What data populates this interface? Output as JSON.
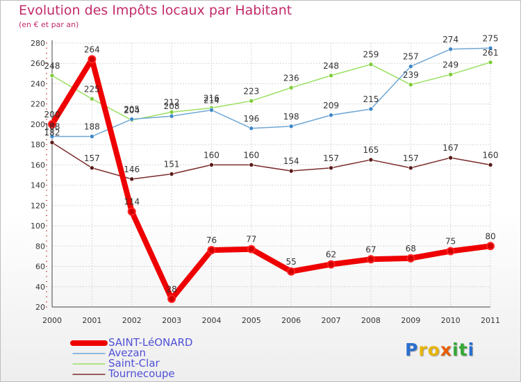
{
  "chart_data": {
    "type": "line",
    "title": "Evolution des Impôts locaux par Habitant",
    "subtitle": "(en € et par an)",
    "categories": [
      "2000",
      "2001",
      "2002",
      "2003",
      "2004",
      "2005",
      "2006",
      "2007",
      "2008",
      "2009",
      "2010",
      "2011"
    ],
    "ylim": [
      20,
      280
    ],
    "yticks": [
      20,
      40,
      60,
      80,
      100,
      120,
      140,
      160,
      180,
      200,
      220,
      240,
      260,
      280
    ],
    "grid": true,
    "series": [
      {
        "name": "SAINT-LéONARD",
        "color": "#ee0000",
        "values": [
          200,
          264,
          114,
          28,
          76,
          77,
          55,
          62,
          67,
          68,
          75,
          80
        ]
      },
      {
        "name": "Avezan",
        "color": "#6fa6d4",
        "values": [
          188,
          188,
          205,
          208,
          214,
          196,
          198,
          209,
          215,
          257,
          274,
          275
        ]
      },
      {
        "name": "Saint-Clar",
        "color": "#99e060",
        "values": [
          248,
          225,
          204,
          212,
          216,
          223,
          236,
          248,
          259,
          239,
          249,
          261
        ]
      },
      {
        "name": "Tournecoupe",
        "color": "#7a2a2a",
        "values": [
          182,
          157,
          146,
          151,
          160,
          160,
          154,
          157,
          165,
          157,
          167,
          160
        ]
      }
    ]
  },
  "logo": {
    "letters": [
      "P",
      "r",
      "o",
      "x",
      "i",
      "t",
      "i"
    ],
    "colors": [
      "#2a6fcf",
      "#e8b400",
      "#e8b400",
      "#e85d00",
      "#36a836",
      "#36a836",
      "#2a6fcf"
    ]
  }
}
